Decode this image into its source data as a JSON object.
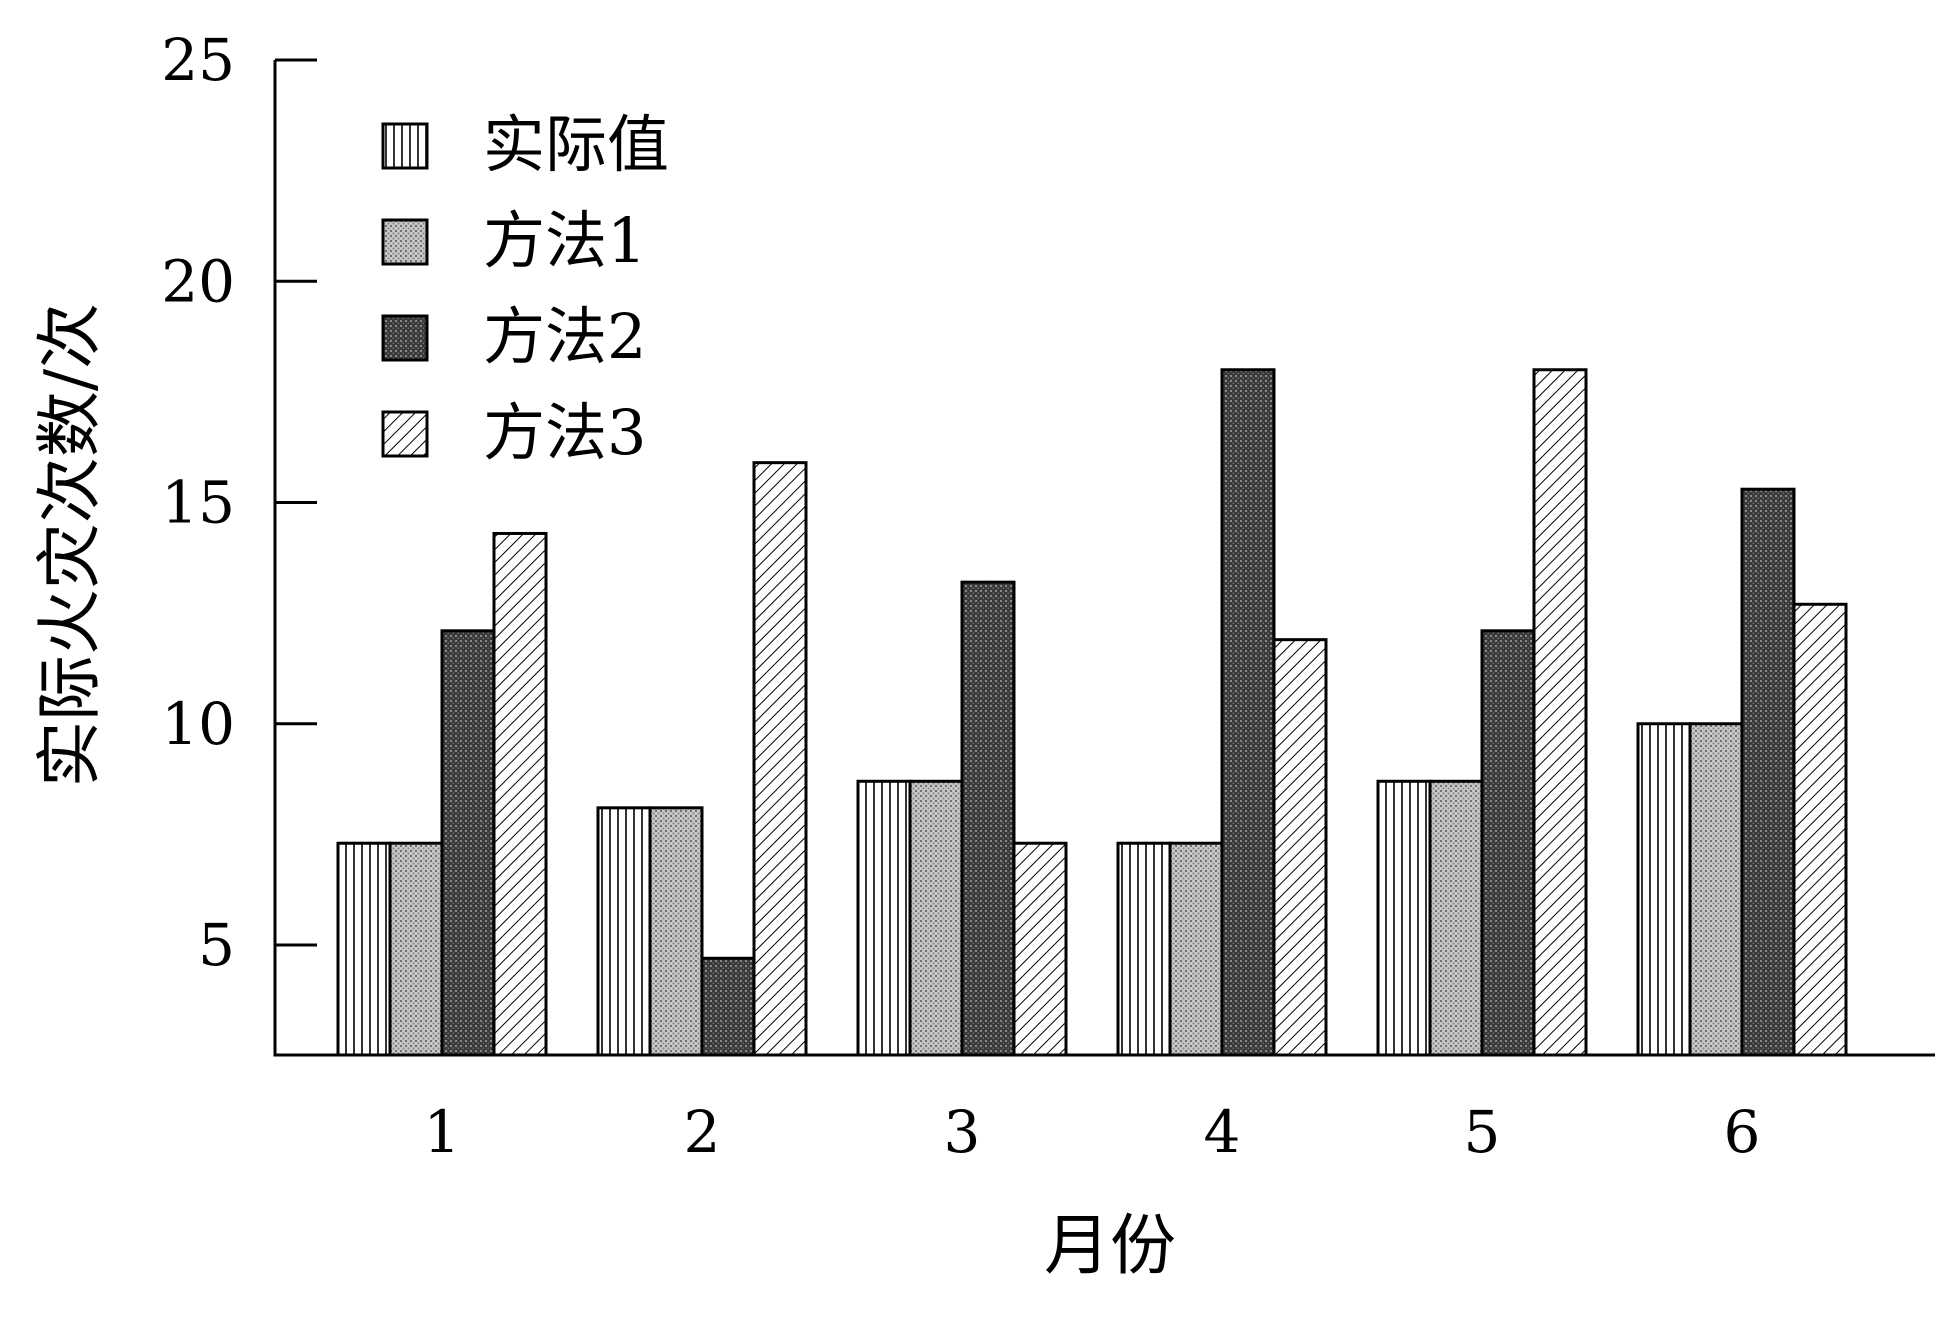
{
  "chart_data": {
    "type": "bar",
    "title": "",
    "xlabel": "月份",
    "ylabel": "实际火灾次数/次",
    "categories": [
      "1",
      "2",
      "3",
      "4",
      "5",
      "6"
    ],
    "yticks": [
      "5",
      "10",
      "15",
      "20",
      "25"
    ],
    "ylim": [
      2.5,
      25
    ],
    "grid": false,
    "legend_position": "top-left",
    "series": [
      {
        "name": "实际值",
        "pattern": "vertical-lines",
        "values": [
          7.3,
          8.1,
          8.7,
          7.3,
          8.7,
          10.0
        ]
      },
      {
        "name": "方法1",
        "pattern": "light-dots",
        "values": [
          7.3,
          8.1,
          8.7,
          7.3,
          8.7,
          10.0
        ]
      },
      {
        "name": "方法2",
        "pattern": "dark-dots",
        "values": [
          12.1,
          4.7,
          13.2,
          18.0,
          12.1,
          15.3
        ]
      },
      {
        "name": "方法3",
        "pattern": "diagonal-hatch",
        "values": [
          14.3,
          15.9,
          7.3,
          11.9,
          18.0,
          12.7
        ]
      }
    ],
    "legend_swatch_colors": [
      "#ffffff",
      "#a6a6a6",
      "#4a4a4a",
      "#ffffff"
    ]
  }
}
